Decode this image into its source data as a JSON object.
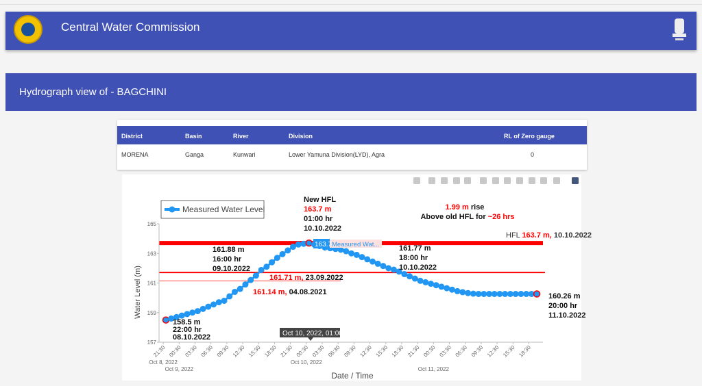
{
  "header": {
    "title": "Central Water Commission"
  },
  "page": {
    "title": "Hydrograph view of - BAGCHINI"
  },
  "table": {
    "columns": [
      "District",
      "Basin",
      "River",
      "Division",
      "RL of Zero gauge"
    ],
    "row": [
      "MORENA",
      "Ganga",
      "Kunwari",
      "Lower Yamuna Division(LYD), Agra",
      "0"
    ]
  },
  "toolbar": {
    "icons": [
      "camera-icon",
      "zoom-icon",
      "pan-icon",
      "box-select-icon",
      "lasso-icon",
      "zoom-in-icon",
      "zoom-out-icon",
      "autoscale-icon",
      "reset-axes-icon",
      "spike-lines-icon",
      "hover-closest-icon",
      "hover-compare-icon",
      "plotly-logo-icon"
    ]
  },
  "colors": {
    "brand": "#3f51b5",
    "series": "#2196f3",
    "hfl": "#ff0000"
  },
  "chart_data": {
    "type": "line",
    "xlabel": "Date / Time",
    "ylabel": "Water Level (m)",
    "ylim": [
      157,
      165
    ],
    "yticks": [
      157,
      159,
      161,
      163,
      165
    ],
    "start": "2022-10-08 22:00",
    "interval": "1 hour",
    "xticks": [
      {
        "t": "21:30",
        "d": "Oct 8, 2022"
      },
      {
        "t": "00:30",
        "d": "Oct 9, 2022"
      },
      {
        "t": "03:30",
        "d": ""
      },
      {
        "t": "06:30",
        "d": ""
      },
      {
        "t": "09:30",
        "d": ""
      },
      {
        "t": "12:30",
        "d": ""
      },
      {
        "t": "15:30",
        "d": ""
      },
      {
        "t": "18:30",
        "d": ""
      },
      {
        "t": "21:30",
        "d": ""
      },
      {
        "t": "00:30",
        "d": "Oct 10, 2022"
      },
      {
        "t": "03:30",
        "d": ""
      },
      {
        "t": "06:30",
        "d": ""
      },
      {
        "t": "09:30",
        "d": ""
      },
      {
        "t": "12:30",
        "d": ""
      },
      {
        "t": "15:30",
        "d": ""
      },
      {
        "t": "18:30",
        "d": ""
      },
      {
        "t": "21:30",
        "d": ""
      },
      {
        "t": "00:30",
        "d": "Oct 11, 2022"
      },
      {
        "t": "03:30",
        "d": ""
      },
      {
        "t": "06:30",
        "d": ""
      },
      {
        "t": "09:30",
        "d": ""
      },
      {
        "t": "12:30",
        "d": ""
      },
      {
        "t": "15:30",
        "d": ""
      },
      {
        "t": "18:30",
        "d": ""
      }
    ],
    "series": [
      {
        "name": "Measured Water Level",
        "values": [
          158.5,
          158.6,
          158.7,
          158.8,
          158.9,
          159.0,
          159.1,
          159.25,
          159.4,
          159.55,
          159.7,
          159.8,
          160.1,
          160.4,
          160.6,
          160.9,
          161.2,
          161.5,
          161.88,
          162.1,
          162.4,
          162.7,
          162.95,
          163.2,
          163.45,
          163.6,
          163.65,
          163.7,
          163.6,
          163.5,
          163.4,
          163.35,
          163.3,
          163.25,
          163.15,
          163.0,
          162.9,
          162.75,
          162.6,
          162.45,
          162.3,
          162.15,
          162.0,
          161.9,
          161.77,
          161.6,
          161.45,
          161.3,
          161.15,
          161.05,
          160.95,
          160.85,
          160.75,
          160.65,
          160.55,
          160.45,
          160.38,
          160.32,
          160.28,
          160.26,
          160.26,
          160.26,
          160.26,
          160.26,
          160.26,
          160.26,
          160.26,
          160.26,
          160.26,
          160.26,
          160.26
        ]
      }
    ],
    "reference_lines": [
      {
        "value": 163.7,
        "label_value": "163.7 m,",
        "label_date": "10.10.2022",
        "prefix": "HFL"
      },
      {
        "value": 161.71,
        "label_value": "161.71 m,",
        "label_date": "23.09.2022"
      },
      {
        "value": 161.14,
        "label_value": "161.14 m,",
        "label_date": "04.08.2021"
      }
    ],
    "annotations": {
      "new_hfl": {
        "title": "New HFL",
        "value": "163.7 m",
        "time": "01:00 hr",
        "date": "10.10.2022"
      },
      "rise": {
        "value": "1.99 m",
        "rise": " rise",
        "above": "Above old HFL for ",
        "duration": "~26 hrs"
      },
      "cross_up": {
        "value": "161.88 m",
        "time": "16:00 hr",
        "date": "09.10.2022"
      },
      "cross_down": {
        "value": "161.77 m",
        "time": "18:00 hr",
        "date": "10.10.2022"
      },
      "start": {
        "value": "158.5 m",
        "time": "22:00 hr",
        "date": "08.10.2022"
      },
      "end": {
        "value": "160.26 m",
        "time": "20:00 hr",
        "date": "11.10.2022"
      }
    },
    "hover": {
      "value": "163.7",
      "series": "Measured Wat...",
      "x": "Oct 10, 2022, 01:00"
    },
    "legend": "top-left"
  }
}
